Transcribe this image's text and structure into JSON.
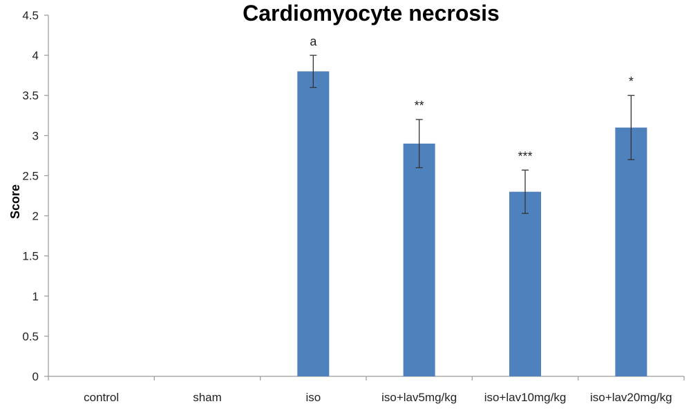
{
  "chart_data": {
    "type": "bar",
    "title": "Cardiomyocyte necrosis",
    "xlabel": "",
    "ylabel": "Score",
    "ylim": [
      0,
      4.5
    ],
    "yticks": [
      0,
      0.5,
      1,
      1.5,
      2,
      2.5,
      3,
      3.5,
      4,
      4.5
    ],
    "ytick_labels": [
      "0",
      "0.5",
      "1",
      "1.5",
      "2",
      "2.5",
      "3",
      "3.5",
      "4",
      "4.5"
    ],
    "categories": [
      "control",
      "sham",
      "iso",
      "iso+lav5mg/kg",
      "iso+lav10mg/kg",
      "iso+lav20mg/kg"
    ],
    "values": [
      0,
      0,
      3.8,
      2.9,
      2.3,
      3.1
    ],
    "errors": [
      0,
      0,
      0.2,
      0.3,
      0.27,
      0.4
    ],
    "annotations": [
      "",
      "",
      "a",
      "**",
      "***",
      "*"
    ],
    "bar_color": "#4f81bd",
    "grid": false,
    "legend": "none"
  }
}
